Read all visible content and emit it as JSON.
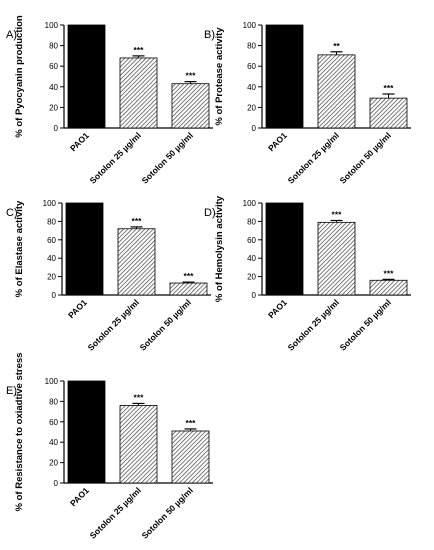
{
  "colors": {
    "control": "#000000",
    "hatch": "#444444",
    "axis": "#000000"
  },
  "chart_data": [
    {
      "type": "bar",
      "panel_label": "A)",
      "ylabel": "% of Pyocyanin production",
      "categories": [
        "PAO1",
        "Sotolon 25 µg/ml",
        "Sotolon 50 µg/ml"
      ],
      "series": [
        {
          "values": [
            100,
            68,
            43
          ],
          "errors": [
            0,
            2,
            2
          ]
        }
      ],
      "significance": [
        "",
        "***",
        "***"
      ],
      "ylim": [
        0,
        100
      ],
      "yticks": [
        0,
        20,
        40,
        60,
        80,
        100
      ],
      "legend": "none",
      "grid": false
    },
    {
      "type": "bar",
      "panel_label": "B)",
      "ylabel": "% of Protease activity",
      "categories": [
        "PAO1",
        "Sotolon 25 µg/ml",
        "Sotolon 50 µg/ml"
      ],
      "series": [
        {
          "values": [
            100,
            71,
            29
          ],
          "errors": [
            0,
            3,
            4
          ]
        }
      ],
      "significance": [
        "",
        "**",
        "***"
      ],
      "ylim": [
        0,
        100
      ],
      "yticks": [
        0,
        20,
        40,
        60,
        80,
        100
      ],
      "legend": "none",
      "grid": false
    },
    {
      "type": "bar",
      "panel_label": "C)",
      "ylabel": "% of Elastase activity",
      "categories": [
        "PAO1",
        "Sotolon 25 µg/ml",
        "Sotolon 50 µg/ml"
      ],
      "series": [
        {
          "values": [
            100,
            72,
            13
          ],
          "errors": [
            0,
            2,
            1
          ]
        }
      ],
      "significance": [
        "",
        "***",
        "***"
      ],
      "ylim": [
        0,
        100
      ],
      "yticks": [
        0,
        20,
        40,
        60,
        80,
        100
      ],
      "legend": "none",
      "grid": false
    },
    {
      "type": "bar",
      "panel_label": "D)",
      "ylabel": "% of Hemolysin activity",
      "categories": [
        "PAO1",
        "Sotolon 25 µg/ml",
        "Sotolon 50 µg/ml"
      ],
      "series": [
        {
          "values": [
            100,
            79,
            16
          ],
          "errors": [
            0,
            2,
            1
          ]
        }
      ],
      "significance": [
        "",
        "***",
        "***"
      ],
      "ylim": [
        0,
        100
      ],
      "yticks": [
        0,
        20,
        40,
        60,
        80,
        100
      ],
      "legend": "none",
      "grid": false
    },
    {
      "type": "bar",
      "panel_label": "E)",
      "ylabel": "% of Resistance to oxiadtive stress",
      "categories": [
        "PAO1",
        "Sotolon 25 µg/ml",
        "Sotolon 50 µg/ml"
      ],
      "series": [
        {
          "values": [
            100,
            76,
            51
          ],
          "errors": [
            0,
            2,
            2
          ]
        }
      ],
      "significance": [
        "",
        "***",
        "***"
      ],
      "ylim": [
        0,
        100
      ],
      "yticks": [
        0,
        20,
        40,
        60,
        80,
        100
      ],
      "legend": "none",
      "grid": false
    }
  ]
}
